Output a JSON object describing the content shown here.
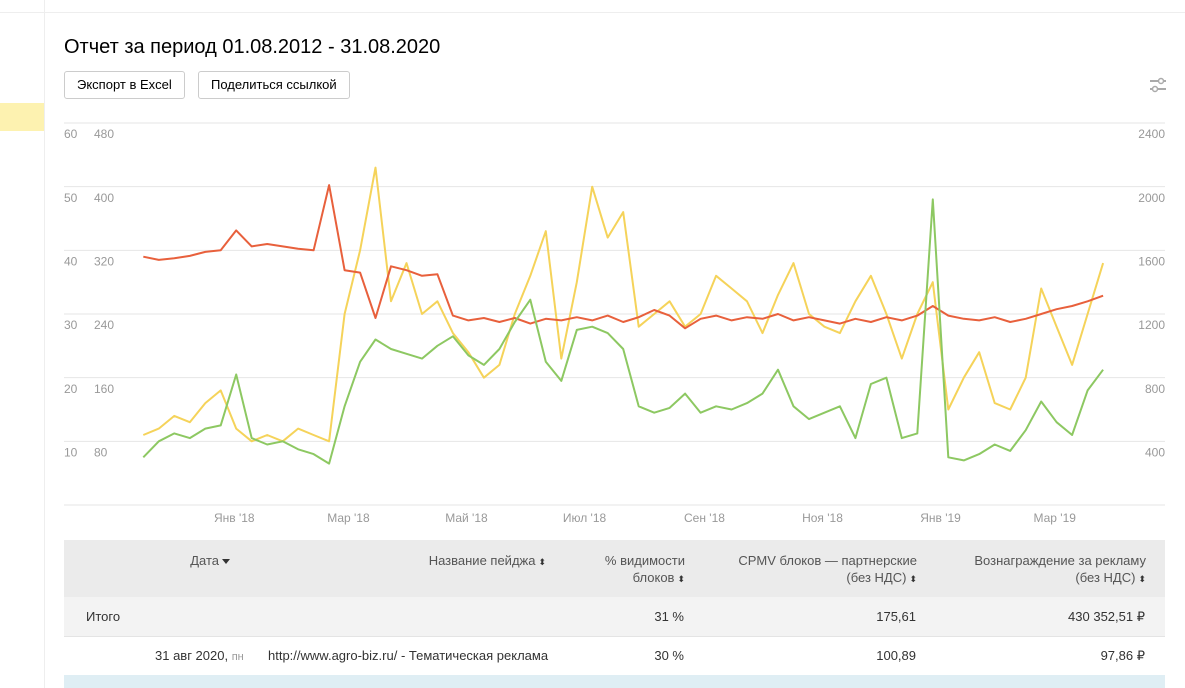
{
  "header": {
    "title": "Отчет за период 01.08.2012 - 31.08.2020",
    "buttons": [
      "Экспорт в Excel",
      "Поделиться ссылкой"
    ]
  },
  "chart_data": {
    "type": "line",
    "grid": true,
    "x": [
      -47,
      -39,
      -31,
      -23,
      -15,
      -7,
      1,
      9,
      17,
      25,
      33,
      41,
      49,
      57,
      65,
      73,
      81,
      89,
      97,
      105,
      113,
      121,
      129,
      137,
      145,
      153,
      161,
      169,
      177,
      185,
      193,
      201,
      209,
      217,
      225,
      233,
      241,
      249,
      257,
      265,
      273,
      281,
      289,
      297,
      305,
      313,
      321,
      329,
      337,
      345,
      353,
      361,
      369,
      377,
      385,
      393,
      401,
      409,
      417,
      425,
      433,
      441,
      449
    ],
    "xlim": [
      -88,
      481
    ],
    "xticks": [
      {
        "value": 0,
        "label": "Янв '18"
      },
      {
        "value": 59,
        "label": "Мар '18"
      },
      {
        "value": 120,
        "label": "Май '18"
      },
      {
        "value": 181,
        "label": "Июл '18"
      },
      {
        "value": 243,
        "label": "Сен '18"
      },
      {
        "value": 304,
        "label": "Ноя '18"
      },
      {
        "value": 365,
        "label": "Янв '19"
      },
      {
        "value": 424,
        "label": "Мар '19"
      }
    ],
    "ylim": [
      0,
      60
    ],
    "yticks": [
      10,
      20,
      30,
      40,
      50,
      60
    ],
    "y2lim": [
      0,
      480
    ],
    "y2ticks": [
      80,
      160,
      240,
      320,
      400,
      480
    ],
    "y3lim": [
      0,
      2400
    ],
    "y3ticks": [
      400,
      800,
      1200,
      1600,
      2000,
      2400
    ],
    "series": [
      {
        "color": "#f5d35a",
        "axis": "y",
        "values": [
          11,
          12,
          14,
          13,
          16,
          18,
          12,
          10,
          11,
          10,
          12,
          11,
          10,
          30,
          40,
          53,
          32,
          38,
          30,
          32,
          27,
          24,
          20,
          22,
          30,
          36,
          43,
          23,
          35,
          50,
          42,
          46,
          28,
          30,
          32,
          28,
          30,
          36,
          34,
          32,
          27,
          33,
          38,
          30,
          28,
          27,
          32,
          36,
          30,
          23,
          30,
          35,
          15,
          20,
          24,
          16,
          15,
          20,
          34,
          28,
          22,
          30,
          38
        ]
      },
      {
        "color": "#e8603c",
        "axis": "y2",
        "values": [
          312,
          308,
          310,
          313,
          318,
          320,
          345,
          325,
          328,
          325,
          322,
          320,
          402,
          295,
          292,
          235,
          300,
          295,
          288,
          290,
          238,
          232,
          235,
          230,
          235,
          228,
          234,
          232,
          236,
          232,
          238,
          230,
          236,
          245,
          238,
          222,
          234,
          238,
          232,
          236,
          234,
          240,
          232,
          236,
          232,
          228,
          234,
          230,
          236,
          232,
          238,
          250,
          238,
          234,
          232,
          236,
          230,
          234,
          240,
          246,
          250,
          256,
          263
        ]
      },
      {
        "color": "#8dc862",
        "axis": "y3",
        "values": [
          300,
          400,
          450,
          420,
          480,
          500,
          820,
          420,
          380,
          400,
          350,
          320,
          260,
          620,
          900,
          1040,
          980,
          950,
          920,
          1000,
          1060,
          940,
          880,
          980,
          1150,
          1290,
          900,
          780,
          1100,
          1120,
          1080,
          980,
          620,
          580,
          610,
          700,
          580,
          620,
          600,
          640,
          700,
          850,
          620,
          540,
          580,
          620,
          420,
          760,
          800,
          420,
          450,
          1920,
          300,
          280,
          320,
          380,
          340,
          470,
          650,
          520,
          440,
          720,
          850
        ]
      }
    ]
  },
  "table": {
    "headers": [
      "Дата",
      "Название пейджа",
      "% видимости блоков",
      "CPMV блоков — партнерские (без НДС)",
      "Вознаграждение за рекламу (без НДС)"
    ],
    "total": [
      "Итого",
      "31 %",
      "175,61",
      "430 352,51 ₽"
    ],
    "rows": [
      [
        "31 авг 2020,",
        "пн",
        "http://www.agro-biz.ru/ - Тематическая реклама",
        "30 %",
        "100,89",
        "97,86 ₽"
      ]
    ]
  }
}
